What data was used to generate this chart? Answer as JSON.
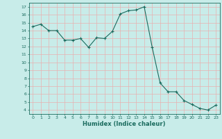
{
  "x": [
    0,
    1,
    2,
    3,
    4,
    5,
    6,
    7,
    8,
    9,
    10,
    11,
    12,
    13,
    14,
    15,
    16,
    17,
    18,
    19,
    20,
    21,
    22,
    23
  ],
  "y": [
    14.5,
    14.8,
    14.0,
    14.0,
    12.8,
    12.8,
    13.0,
    11.9,
    13.1,
    13.0,
    13.9,
    16.1,
    16.5,
    16.6,
    17.0,
    11.9,
    7.4,
    6.3,
    6.3,
    5.2,
    4.7,
    4.2,
    4.0,
    4.6
  ],
  "xlabel": "Humidex (Indice chaleur)",
  "bg_color": "#c8ece9",
  "grid_color": "#aad4ce",
  "line_color": "#1a6b5e",
  "xlim": [
    -0.5,
    23.5
  ],
  "ylim": [
    3.5,
    17.5
  ],
  "yticks": [
    4,
    5,
    6,
    7,
    8,
    9,
    10,
    11,
    12,
    13,
    14,
    15,
    16,
    17
  ],
  "xticks": [
    0,
    1,
    2,
    3,
    4,
    5,
    6,
    7,
    8,
    9,
    10,
    11,
    12,
    13,
    14,
    15,
    16,
    17,
    18,
    19,
    20,
    21,
    22,
    23
  ]
}
